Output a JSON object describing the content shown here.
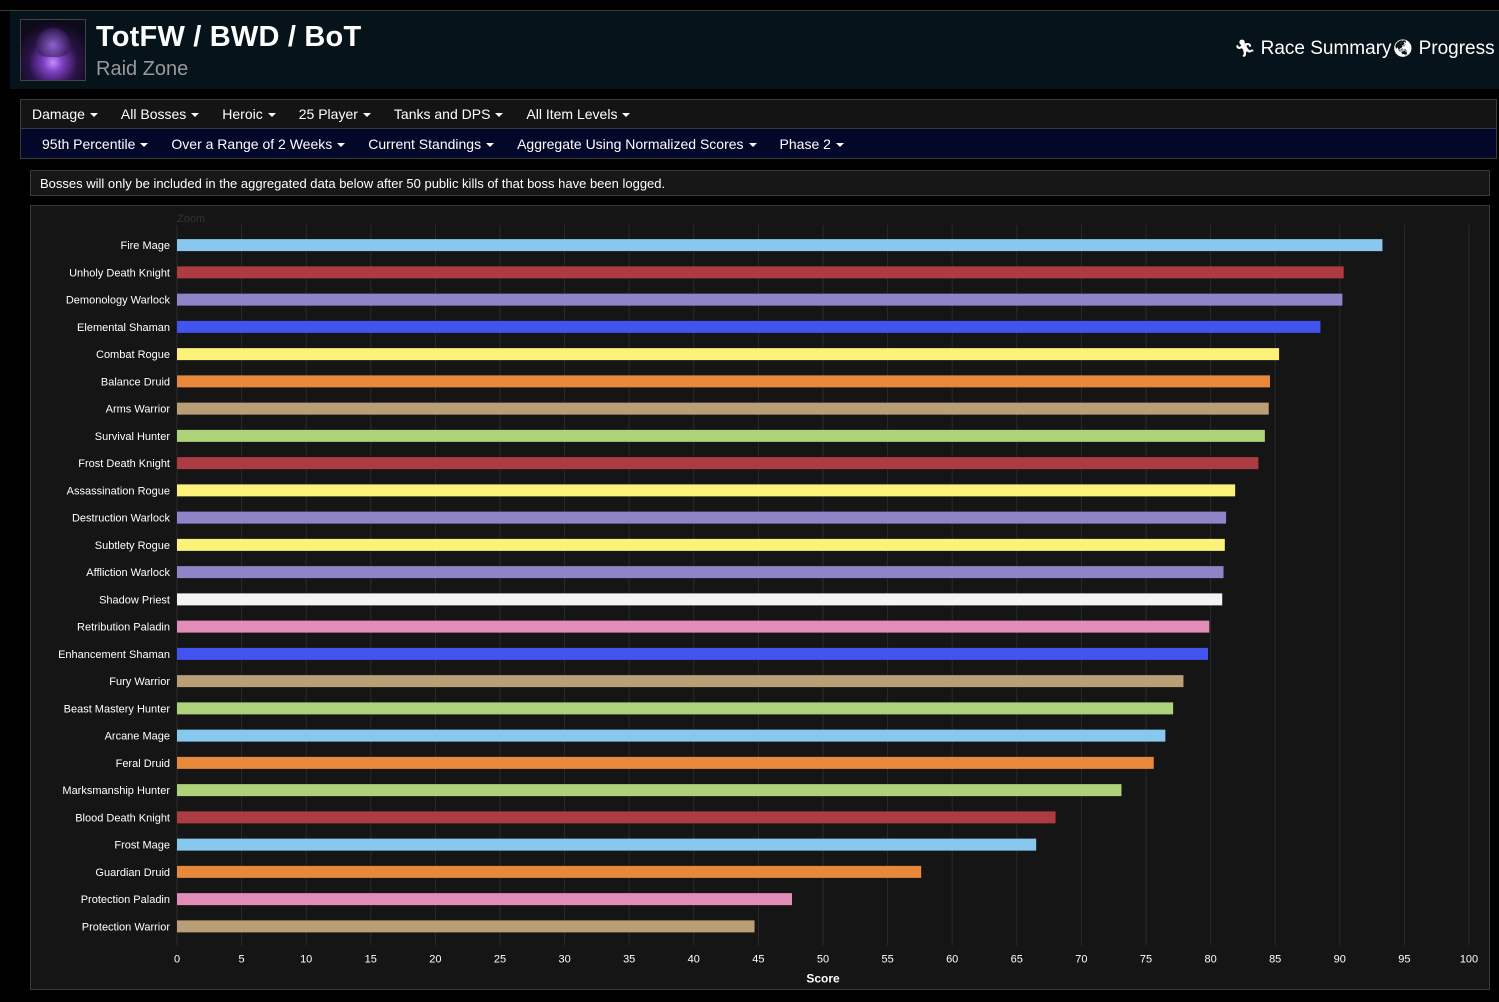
{
  "header": {
    "title": "TotFW / BWD / BoT",
    "subtitle": "Raid Zone",
    "links": [
      {
        "label": "Race Summary",
        "icon": "running-person-icon"
      },
      {
        "label": "Progress",
        "icon": "globe-icon"
      }
    ]
  },
  "filters_row1": [
    {
      "label": "Damage"
    },
    {
      "label": "All Bosses"
    },
    {
      "label": "Heroic"
    },
    {
      "label": "25 Player"
    },
    {
      "label": "Tanks and DPS"
    },
    {
      "label": "All Item Levels"
    }
  ],
  "filters_row2": [
    {
      "label": "95th Percentile"
    },
    {
      "label": "Over a Range of 2 Weeks"
    },
    {
      "label": "Current Standings"
    },
    {
      "label": "Aggregate Using Normalized Scores"
    },
    {
      "label": "Phase 2"
    }
  ],
  "notice": "Bosses will only be included in the aggregated data below after 50 public kills of that boss have been logged.",
  "chart_data": {
    "type": "bar",
    "orientation": "horizontal",
    "zoom_label": "Zoom",
    "xlabel": "Score",
    "xlim": [
      0,
      100
    ],
    "xticks": [
      0,
      5,
      10,
      15,
      20,
      25,
      30,
      35,
      40,
      45,
      50,
      55,
      60,
      65,
      70,
      75,
      80,
      85,
      90,
      95,
      100
    ],
    "grid": true,
    "categories": [
      "Fire Mage",
      "Unholy Death Knight",
      "Demonology Warlock",
      "Elemental Shaman",
      "Combat Rogue",
      "Balance Druid",
      "Arms Warrior",
      "Survival Hunter",
      "Frost Death Knight",
      "Assassination Rogue",
      "Destruction Warlock",
      "Subtlety Rogue",
      "Affliction Warlock",
      "Shadow Priest",
      "Retribution Paladin",
      "Enhancement Shaman",
      "Fury Warrior",
      "Beast Mastery Hunter",
      "Arcane Mage",
      "Feral Druid",
      "Marksmanship Hunter",
      "Blood Death Knight",
      "Frost Mage",
      "Guardian Druid",
      "Protection Paladin",
      "Protection Warrior"
    ],
    "values": [
      93.3,
      90.3,
      90.2,
      88.5,
      85.3,
      84.6,
      84.5,
      84.2,
      83.7,
      81.9,
      81.2,
      81.1,
      81.0,
      80.9,
      79.9,
      79.8,
      77.9,
      77.1,
      76.5,
      75.6,
      73.1,
      68.0,
      66.5,
      57.6,
      47.6,
      44.7
    ],
    "colors": [
      "#88c7ee",
      "#ad3b42",
      "#8d85c7",
      "#4253f0",
      "#fcf27a",
      "#e8883a",
      "#b99e76",
      "#aed279",
      "#ad3b42",
      "#fcf27a",
      "#8d85c7",
      "#fcf27a",
      "#8d85c7",
      "#f4f4f4",
      "#e18db8",
      "#4253f0",
      "#b99e76",
      "#aed279",
      "#88c7ee",
      "#e8883a",
      "#aed279",
      "#ad3b42",
      "#88c7ee",
      "#e8883a",
      "#e18db8",
      "#b99e76"
    ]
  }
}
